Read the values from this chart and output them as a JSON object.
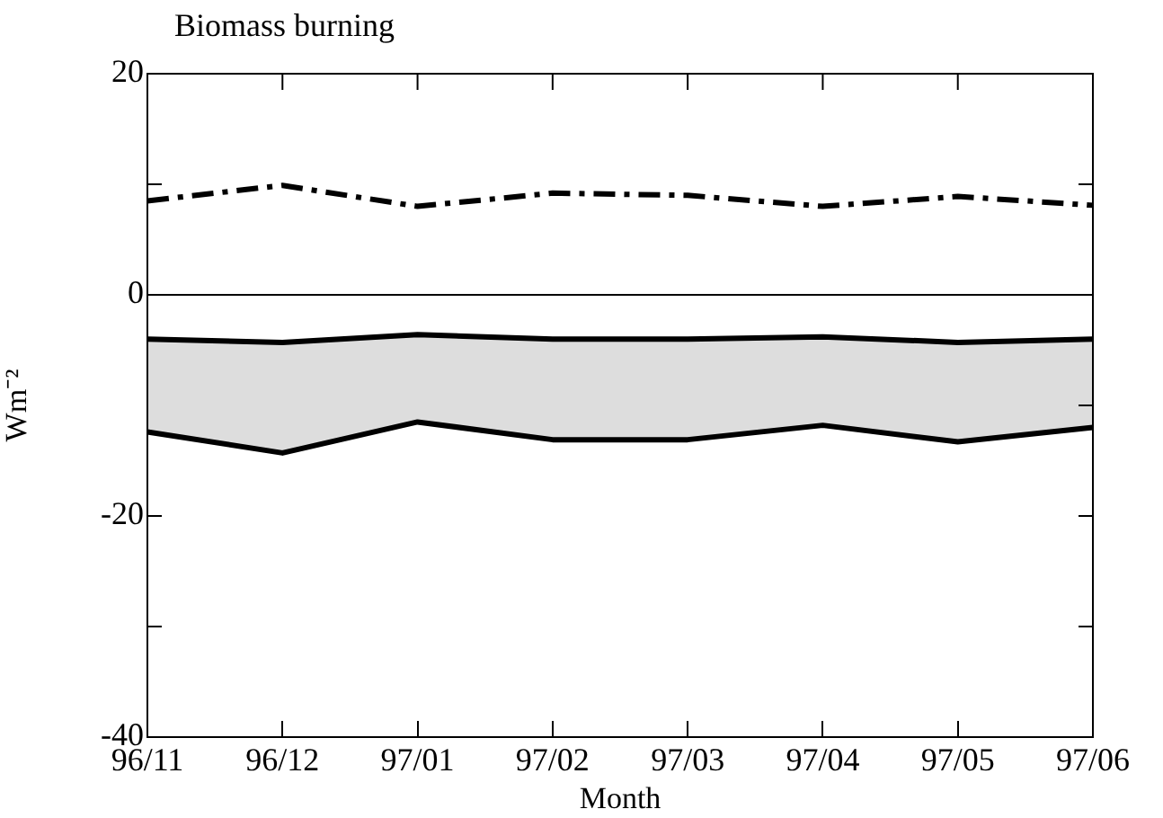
{
  "chart_data": {
    "type": "line",
    "title": "Biomass burning",
    "xlabel": "Month",
    "ylabel": "Wm⁻²",
    "categories": [
      "96/11",
      "96/12",
      "97/01",
      "97/02",
      "97/03",
      "97/04",
      "97/05",
      "97/06"
    ],
    "ylim": [
      -40,
      20
    ],
    "yticks": [
      -40,
      {
        "value": -30,
        "label": null
      },
      -20,
      {
        "value": -10,
        "label": null
      },
      0,
      {
        "value": 10,
        "label": null
      },
      20
    ],
    "grid": false,
    "legend": false,
    "marker": "none",
    "ref_lines": [
      {
        "axis": "y",
        "value": 0,
        "color": "#000000"
      }
    ],
    "series": [
      {
        "color": "#000000",
        "line_style": "dashed",
        "values": [
          8.5,
          9.9,
          8.0,
          9.2,
          9.0,
          8.0,
          8.9,
          8.1
        ]
      },
      {
        "color": "#000000",
        "line_style": "solid",
        "values": [
          -4.0,
          -4.3,
          -3.6,
          -4.0,
          -4.0,
          -3.8,
          -4.3,
          -4.0
        ]
      },
      {
        "color": "#000000",
        "line_style": "solid",
        "values": [
          -12.4,
          -14.3,
          -11.5,
          -13.1,
          -13.1,
          -11.8,
          -13.3,
          -12.0
        ],
        "lower": [
          -12.4,
          -14.3,
          -11.5,
          -13.1,
          -13.1,
          -11.8,
          -13.3,
          -12.0
        ],
        "upper": [
          -4.0,
          -4.3,
          -3.6,
          -4.0,
          -4.0,
          -3.8,
          -4.3,
          -4.0
        ]
      }
    ]
  }
}
